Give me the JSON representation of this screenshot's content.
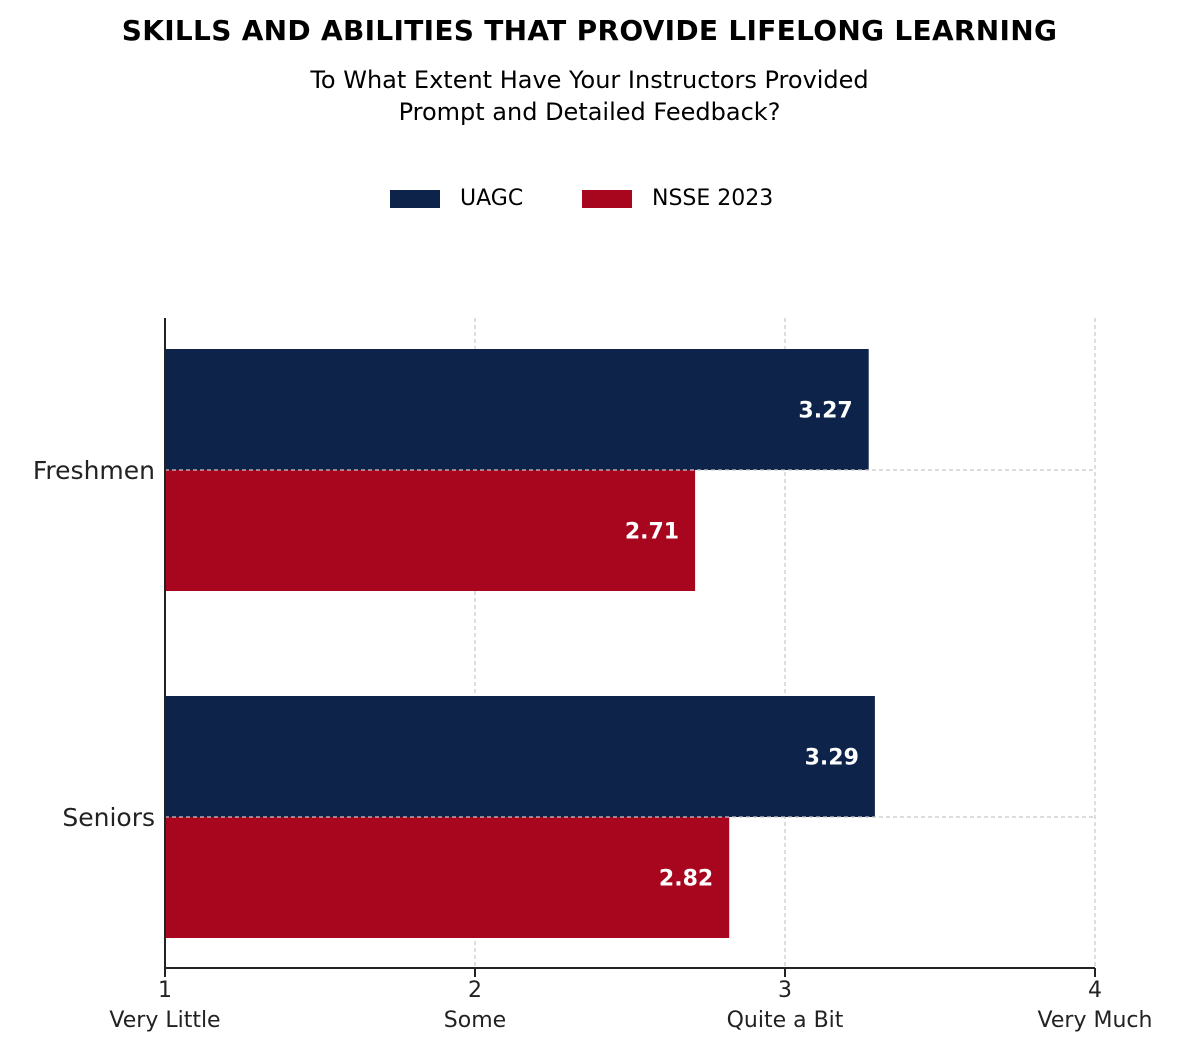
{
  "chart_data": {
    "type": "bar",
    "orientation": "horizontal",
    "title": "SKILLS AND ABILITIES THAT PROVIDE LIFELONG LEARNING",
    "subtitle_lines": [
      "To What Extent Have Your Instructors Provided",
      "Prompt and Detailed Feedback?"
    ],
    "categories": [
      "Freshmen",
      "Seniors"
    ],
    "series": [
      {
        "name": "UAGC",
        "color": "#0e234a",
        "values": [
          3.27,
          3.29
        ],
        "labels": [
          "3.27",
          "3.29"
        ]
      },
      {
        "name": "NSSE 2023",
        "color": "#a8061f",
        "values": [
          2.71,
          2.82
        ],
        "labels": [
          "2.71",
          "2.82"
        ]
      }
    ],
    "xlim": [
      1,
      4
    ],
    "x_ticks": [
      {
        "value": 1,
        "label": "1",
        "sublabel": "Very Little"
      },
      {
        "value": 2,
        "label": "2",
        "sublabel": "Some"
      },
      {
        "value": 3,
        "label": "3",
        "sublabel": "Quite a Bit"
      },
      {
        "value": 4,
        "label": "4",
        "sublabel": "Very Much"
      }
    ],
    "grid": true,
    "legend_position": "top-center"
  }
}
